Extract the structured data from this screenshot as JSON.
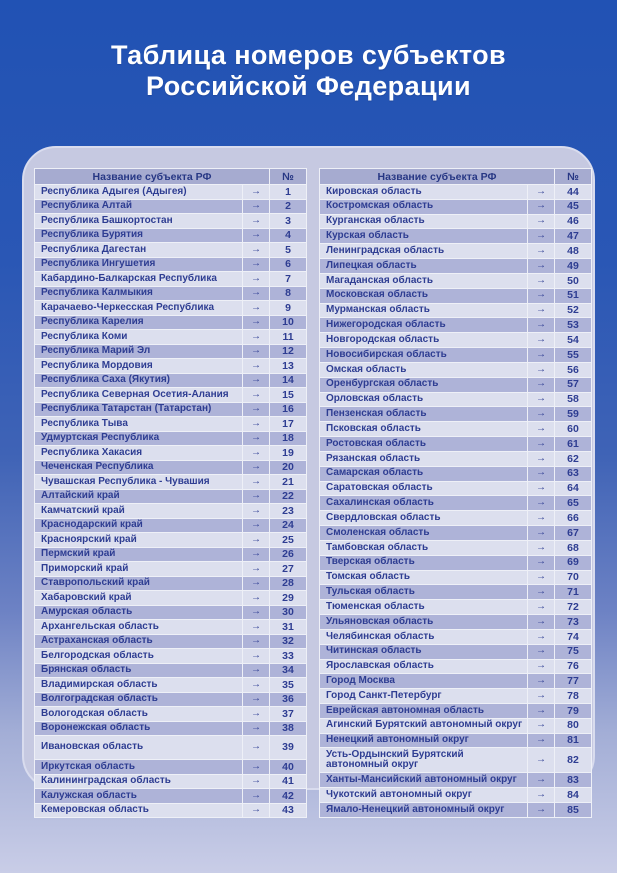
{
  "title": {
    "line1": "Таблица номеров субъектов",
    "line2": "Российской Федерации"
  },
  "table_header": {
    "name": "Название субъекта РФ",
    "number": "№"
  },
  "arrow_glyph": "→",
  "colors": {
    "background_top": "#2152b4",
    "background_bottom": "#c9cde7",
    "panel": "#c6c9e1",
    "header_bg": "#a6abd0",
    "row_light": "#dcdfee",
    "row_dark": "#aeb3d8",
    "text_navy": "#2e3d92",
    "title_text": "#ffffff"
  },
  "tables": [
    {
      "id": "left",
      "rows": [
        {
          "name": "Республика Адыгея (Адыгея)",
          "number": "1"
        },
        {
          "name": "Республика Алтай",
          "number": "2"
        },
        {
          "name": "Республика Башкортостан",
          "number": "3"
        },
        {
          "name": "Республика Бурятия",
          "number": "4"
        },
        {
          "name": "Республика Дагестан",
          "number": "5"
        },
        {
          "name": "Республика Ингушетия",
          "number": "6"
        },
        {
          "name": "Кабардино-Балкарская Республика",
          "number": "7"
        },
        {
          "name": "Республика Калмыкия",
          "number": "8"
        },
        {
          "name": "Карачаево-Черкесская Республика",
          "number": "9"
        },
        {
          "name": "Республика Карелия",
          "number": "10"
        },
        {
          "name": "Республика Коми",
          "number": "11"
        },
        {
          "name": "Республика Марий Эл",
          "number": "12"
        },
        {
          "name": "Республика Мордовия",
          "number": "13"
        },
        {
          "name": "Республика Саха (Якутия)",
          "number": "14"
        },
        {
          "name": "Республика Северная Осетия-Алания",
          "number": "15"
        },
        {
          "name": "Республика Татарстан (Татарстан)",
          "number": "16"
        },
        {
          "name": "Республика Тыва",
          "number": "17"
        },
        {
          "name": "Удмуртская Республика",
          "number": "18"
        },
        {
          "name": "Республика Хакасия",
          "number": "19"
        },
        {
          "name": "Чеченская Республика",
          "number": "20"
        },
        {
          "name": "Чувашская Республика - Чувашия",
          "number": "21"
        },
        {
          "name": "Алтайский край",
          "number": "22"
        },
        {
          "name": "Камчатский край",
          "number": "23"
        },
        {
          "name": "Краснодарский край",
          "number": "24"
        },
        {
          "name": "Красноярский край",
          "number": "25"
        },
        {
          "name": "Пермский край",
          "number": "26"
        },
        {
          "name": "Приморский край",
          "number": "27"
        },
        {
          "name": "Ставропольский край",
          "number": "28"
        },
        {
          "name": "Хабаровский край",
          "number": "29"
        },
        {
          "name": "Амурская область",
          "number": "30"
        },
        {
          "name": "Архангельская область",
          "number": "31"
        },
        {
          "name": "Астраханская область",
          "number": "32"
        },
        {
          "name": "Белгородская область",
          "number": "33"
        },
        {
          "name": "Брянская область",
          "number": "34"
        },
        {
          "name": "Владимирская область",
          "number": "35"
        },
        {
          "name": "Волгоградская область",
          "number": "36"
        },
        {
          "name": "Вологодская область",
          "number": "37"
        },
        {
          "name": "Воронежская область",
          "number": "38"
        },
        {
          "name": "Ивановская область",
          "number": "39",
          "tall": true
        },
        {
          "name": "Иркутская область",
          "number": "40"
        },
        {
          "name": "Калининградская область",
          "number": "41"
        },
        {
          "name": "Калужская область",
          "number": "42"
        },
        {
          "name": "Кемеровская область",
          "number": "43"
        }
      ]
    },
    {
      "id": "right",
      "rows": [
        {
          "name": "Кировская область",
          "number": "44"
        },
        {
          "name": "Костромская область",
          "number": "45"
        },
        {
          "name": "Курганская область",
          "number": "46"
        },
        {
          "name": "Курская область",
          "number": "47"
        },
        {
          "name": "Ленинградская область",
          "number": "48"
        },
        {
          "name": "Липецкая область",
          "number": "49"
        },
        {
          "name": "Магаданская область",
          "number": "50"
        },
        {
          "name": "Московская область",
          "number": "51"
        },
        {
          "name": "Мурманская область",
          "number": "52"
        },
        {
          "name": "Нижегородская область",
          "number": "53"
        },
        {
          "name": "Новгородская область",
          "number": "54"
        },
        {
          "name": "Новосибирская область",
          "number": "55"
        },
        {
          "name": "Омская область",
          "number": "56"
        },
        {
          "name": "Оренбургская область",
          "number": "57"
        },
        {
          "name": "Орловская область",
          "number": "58"
        },
        {
          "name": "Пензенская область",
          "number": "59"
        },
        {
          "name": "Псковская область",
          "number": "60"
        },
        {
          "name": "Ростовская область",
          "number": "61"
        },
        {
          "name": "Рязанская область",
          "number": "62"
        },
        {
          "name": "Самарская область",
          "number": "63"
        },
        {
          "name": "Саратовская область",
          "number": "64"
        },
        {
          "name": "Сахалинская область",
          "number": "65"
        },
        {
          "name": "Свердловская область",
          "number": "66"
        },
        {
          "name": "Смоленская область",
          "number": "67"
        },
        {
          "name": "Тамбовская область",
          "number": "68"
        },
        {
          "name": "Тверская область",
          "number": "69"
        },
        {
          "name": "Томская область",
          "number": "70"
        },
        {
          "name": "Тульская область",
          "number": "71"
        },
        {
          "name": "Тюменская область",
          "number": "72"
        },
        {
          "name": "Ульяновская область",
          "number": "73"
        },
        {
          "name": "Челябинская область",
          "number": "74"
        },
        {
          "name": "Читинская область",
          "number": "75"
        },
        {
          "name": "Ярославская область",
          "number": "76"
        },
        {
          "name": "Город Москва",
          "number": "77"
        },
        {
          "name": "Город Санкт-Петербург",
          "number": "78"
        },
        {
          "name": "Еврейская автономная область",
          "number": "79"
        },
        {
          "name": "Агинский Бурятский автономный округ",
          "number": "80"
        },
        {
          "name": "Ненецкий автономный округ",
          "number": "81"
        },
        {
          "name": "Усть-Ордынский Бурятский автономный округ",
          "number": "82",
          "tall": true
        },
        {
          "name": "Ханты-Мансийский автономный округ",
          "number": "83"
        },
        {
          "name": "Чукотский автономный округ",
          "number": "84"
        },
        {
          "name": "Ямало-Ненецкий автономный округ",
          "number": "85"
        }
      ]
    }
  ]
}
